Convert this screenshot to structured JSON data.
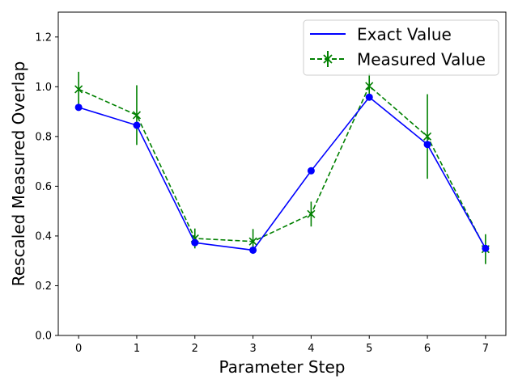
{
  "chart_data": {
    "type": "line",
    "title": "",
    "xlabel": "Parameter Step",
    "ylabel": "Rescaled Measured Overlap",
    "x": [
      0,
      1,
      2,
      3,
      4,
      5,
      6,
      7
    ],
    "xlim": [
      -0.35,
      7.35
    ],
    "ylim": [
      0.0,
      1.3
    ],
    "x_ticks": [
      "0",
      "1",
      "2",
      "3",
      "4",
      "5",
      "6",
      "7"
    ],
    "y_ticks": [
      "0.0",
      "0.2",
      "0.4",
      "0.6",
      "0.8",
      "1.0",
      "1.2"
    ],
    "grid": false,
    "legend_position": "top-right",
    "series": [
      {
        "name": "Exact Value",
        "values": [
          0.917,
          0.845,
          0.373,
          0.343,
          0.662,
          0.958,
          0.768,
          0.35
        ],
        "color": "#0000ff",
        "style": "solid",
        "marker": "circle"
      },
      {
        "name": "Measured Value",
        "values": [
          0.99,
          0.886,
          0.39,
          0.378,
          0.488,
          1.003,
          0.8,
          0.347
        ],
        "errors": [
          0.07,
          0.12,
          0.04,
          0.05,
          0.05,
          0.05,
          0.17,
          0.06
        ],
        "color": "#008000",
        "style": "dashed",
        "marker": "x"
      }
    ]
  }
}
